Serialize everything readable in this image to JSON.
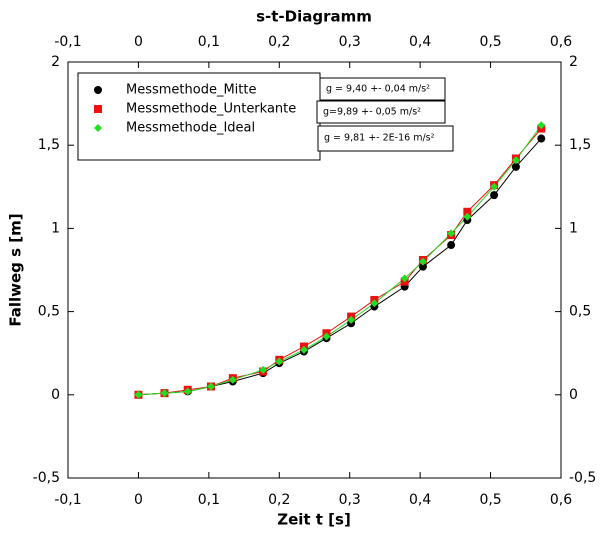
{
  "chart_data": {
    "type": "scatter",
    "title": "s-t-Diagramm",
    "x_label": "Zeit t [s]",
    "y_label": "Fallweg s [m]",
    "x": [
      0,
      0.037,
      0.07,
      0.103,
      0.134,
      0.177,
      0.2,
      0.235,
      0.267,
      0.302,
      0.335,
      0.378,
      0.404,
      0.444,
      0.467,
      0.505,
      0.536,
      0.572
    ],
    "series": [
      {
        "name": "Messmethode_Mitte",
        "color": "#000000",
        "marker": "circle",
        "values": [
          0,
          0.01,
          0.02,
          0.05,
          0.08,
          0.13,
          0.19,
          0.26,
          0.34,
          0.43,
          0.53,
          0.65,
          0.77,
          0.9,
          1.05,
          1.2,
          1.37,
          1.54
        ]
      },
      {
        "name": "Messmethode_Unterkante",
        "color": "#ee1111",
        "marker": "square",
        "values": [
          0,
          0.01,
          0.03,
          0.05,
          0.1,
          0.14,
          0.21,
          0.29,
          0.37,
          0.47,
          0.57,
          0.68,
          0.81,
          0.96,
          1.1,
          1.26,
          1.42,
          1.6
        ]
      },
      {
        "name": "Messmethode_Ideal",
        "color": "#22dd22",
        "marker": "diamond",
        "values": [
          0,
          0.01,
          0.02,
          0.05,
          0.09,
          0.15,
          0.2,
          0.27,
          0.35,
          0.45,
          0.55,
          0.7,
          0.8,
          0.97,
          1.07,
          1.25,
          1.41,
          1.62
        ]
      }
    ],
    "annotations": [
      "g = 9,40 +- 0,04 m/s²",
      "g=9,89 +- 0,05 m/s²",
      "g = 9,81 +- 2E-16 m/s²"
    ],
    "xlim": [
      -0.1,
      0.6
    ],
    "xticks": [
      {
        "value": -0.1,
        "label": "-0,1"
      },
      0,
      {
        "value": 0.1,
        "label": "0,1"
      },
      {
        "value": 0.2,
        "label": "0,2"
      },
      {
        "value": 0.3,
        "label": "0,3"
      },
      {
        "value": 0.4,
        "label": "0,4"
      },
      {
        "value": 0.5,
        "label": "0,5"
      },
      {
        "value": 0.6,
        "label": "0,6"
      }
    ],
    "ylim": [
      -0.5,
      2
    ],
    "yticks": [
      {
        "value": -0.5,
        "label": "-0,5"
      },
      0,
      {
        "value": 0.5,
        "label": "0,5"
      },
      1,
      {
        "value": 1.5,
        "label": "1,5"
      },
      2
    ],
    "grid": false,
    "legend": "upper left"
  }
}
